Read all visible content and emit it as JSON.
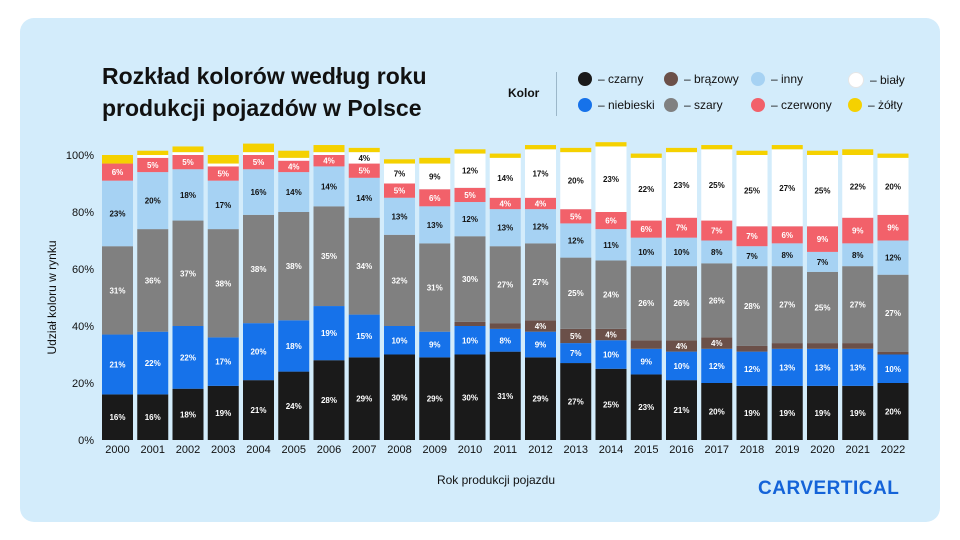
{
  "title_line1": "Rozkład kolorów według roku",
  "title_line2": "produkcji pojazdów w Polsce",
  "legend_title": "Kolor",
  "brand": "CARVERTICAL",
  "colors": {
    "czarny": "#1a1a1a",
    "brazowy": "#6b5049",
    "inny": "#a6d2f3",
    "bialy": "#ffffff",
    "niebieski": "#1672ea",
    "szary": "#808080",
    "czerwony": "#f2616a",
    "zolty": "#f5d100"
  },
  "legend": [
    {
      "key": "czarny",
      "label": "– czarny"
    },
    {
      "key": "brazowy",
      "label": "– brązowy"
    },
    {
      "key": "inny",
      "label": "– inny"
    },
    {
      "key": "bialy",
      "label": "– biały"
    },
    {
      "key": "niebieski",
      "label": "– niebieski"
    },
    {
      "key": "szary",
      "label": "– szary"
    },
    {
      "key": "czerwony",
      "label": "– czerwony"
    },
    {
      "key": "zolty",
      "label": "– żółty"
    }
  ],
  "chart_data": {
    "type": "bar",
    "stacked": true,
    "xlabel": "Rok produkcji pojazdu",
    "ylabel": "Udział koloru w rynku",
    "ylim": [
      0,
      100
    ],
    "yticks": [
      "0%",
      "20%",
      "40%",
      "60%",
      "80%",
      "100%"
    ],
    "categories": [
      "2000",
      "2001",
      "2002",
      "2003",
      "2004",
      "2005",
      "2006",
      "2007",
      "2008",
      "2009",
      "2010",
      "2011",
      "2012",
      "2013",
      "2014",
      "2015",
      "2016",
      "2017",
      "2018",
      "2019",
      "2020",
      "2021",
      "2022"
    ],
    "series": [
      {
        "key": "czarny",
        "values": [
          16,
          16,
          18,
          19,
          21,
          24,
          28,
          29,
          30,
          29,
          30,
          31,
          29,
          27,
          25,
          23,
          21,
          20,
          19,
          19,
          19,
          19,
          20
        ],
        "labels": [
          "16%",
          "16%",
          "18%",
          "19%",
          "21%",
          "24%",
          "28%",
          "29%",
          "30%",
          "29%",
          "30%",
          "31%",
          "29%",
          "27%",
          "25%",
          "23%",
          "21%",
          "20%",
          "19%",
          "19%",
          "19%",
          "19%",
          "20%"
        ]
      },
      {
        "key": "niebieski",
        "values": [
          21,
          22,
          22,
          17,
          20,
          18,
          19,
          15,
          10,
          9,
          10,
          8,
          9,
          7,
          10,
          9,
          10,
          12,
          12,
          13,
          13,
          13,
          10
        ],
        "labels": [
          "21%",
          "22%",
          "22%",
          "17%",
          "20%",
          "18%",
          "19%",
          "15%",
          "10%",
          "9%",
          "10%",
          "8%",
          "9%",
          "7%",
          "10%",
          "9%",
          "10%",
          "12%",
          "12%",
          "13%",
          "13%",
          "13%",
          "10%"
        ]
      },
      {
        "key": "brazowy",
        "values": [
          0,
          0,
          0,
          0,
          0,
          0,
          0,
          0,
          0,
          0,
          1.5,
          2,
          4,
          5,
          4,
          3,
          4,
          4,
          2,
          2,
          2,
          2,
          1
        ],
        "labels": [
          "",
          "",
          "",
          "",
          "",
          "",
          "",
          "",
          "",
          "",
          "",
          "",
          "4%",
          "5%",
          "4%",
          "",
          "4%",
          "4%",
          "",
          "",
          "",
          "",
          ""
        ]
      },
      {
        "key": "szary",
        "values": [
          31,
          36,
          37,
          38,
          38,
          38,
          35,
          34,
          32,
          31,
          30,
          27,
          27,
          25,
          24,
          26,
          26,
          26,
          28,
          27,
          25,
          27,
          27
        ],
        "labels": [
          "31%",
          "36%",
          "37%",
          "38%",
          "38%",
          "38%",
          "35%",
          "34%",
          "32%",
          "31%",
          "30%",
          "27%",
          "27%",
          "25%",
          "24%",
          "26%",
          "26%",
          "26%",
          "28%",
          "27%",
          "25%",
          "27%",
          "27%"
        ]
      },
      {
        "key": "inny",
        "values": [
          23,
          20,
          18,
          17,
          16,
          14,
          14,
          14,
          13,
          13,
          12,
          13,
          12,
          12,
          11,
          10,
          10,
          8,
          7,
          8,
          7,
          8,
          12
        ],
        "labels": [
          "23%",
          "20%",
          "18%",
          "17%",
          "16%",
          "14%",
          "14%",
          "14%",
          "13%",
          "13%",
          "12%",
          "13%",
          "12%",
          "12%",
          "11%",
          "10%",
          "10%",
          "8%",
          "7%",
          "8%",
          "7%",
          "8%",
          "12%"
        ]
      },
      {
        "key": "czerwony",
        "values": [
          6,
          5,
          5,
          5,
          5,
          4,
          4,
          5,
          5,
          6,
          5,
          4,
          4,
          5,
          6,
          6,
          7,
          7,
          7,
          6,
          9,
          9,
          9
        ],
        "labels": [
          "6%",
          "5%",
          "5%",
          "5%",
          "5%",
          "4%",
          "4%",
          "5%",
          "5%",
          "6%",
          "5%",
          "4%",
          "4%",
          "5%",
          "6%",
          "6%",
          "7%",
          "7%",
          "7%",
          "6%",
          "9%",
          "9%",
          "9%"
        ]
      },
      {
        "key": "bialy",
        "values": [
          0,
          1,
          1,
          1,
          1,
          1,
          1,
          4,
          7,
          9,
          12,
          14,
          17,
          20,
          23,
          22,
          23,
          25,
          25,
          27,
          25,
          22,
          20
        ],
        "labels": [
          "",
          "",
          "",
          "",
          "",
          "",
          "",
          "4%",
          "7%",
          "9%",
          "12%",
          "14%",
          "17%",
          "20%",
          "23%",
          "22%",
          "23%",
          "25%",
          "25%",
          "27%",
          "25%",
          "22%",
          "20%"
        ]
      },
      {
        "key": "zolty",
        "values": [
          3,
          1.5,
          2,
          3,
          3,
          2.5,
          2.5,
          1.5,
          1.5,
          2,
          1.5,
          1.5,
          1.5,
          1.5,
          1.5,
          1.5,
          1.5,
          1.5,
          1.5,
          1.5,
          1.5,
          2,
          1.5
        ],
        "labels": [
          "",
          "",
          "",
          "",
          "",
          "",
          "",
          "",
          "",
          "",
          "",
          "",
          "",
          "",
          "",
          "",
          "",
          "",
          "",
          "",
          "",
          "",
          ""
        ]
      }
    ]
  }
}
